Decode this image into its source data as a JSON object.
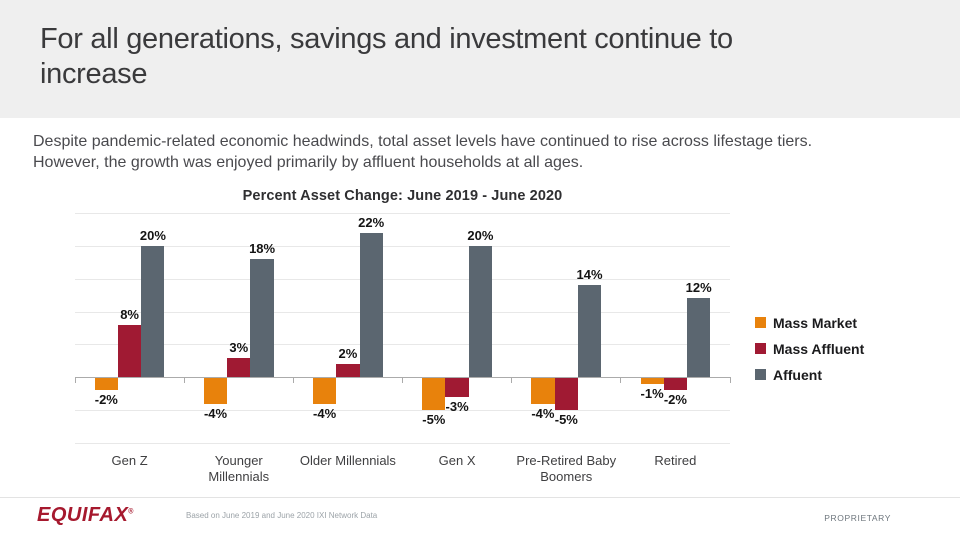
{
  "slide": {
    "header": {
      "title": "For all generations, savings and investment continue to increase",
      "bg_color": "#EFEFEF"
    },
    "subtitle": {
      "line1": "Despite pandemic-related economic headwinds, total asset levels have continued to rise across lifestage tiers.",
      "line2": "However, the growth was enjoyed primarily by affluent households at all ages."
    },
    "footer": {
      "logo_text": "EQUIFAX",
      "logo_registered_mark": "®",
      "logo_color": "#A6192E",
      "footnote": "Based on June 2019 and June 2020 IXI Network Data",
      "proprietary_label": "PROPRIETARY"
    }
  },
  "chart_data": {
    "type": "bar",
    "title": "Percent Asset Change: June 2019 - June 2020",
    "categories": [
      "Gen Z",
      "Younger Millennials",
      "Older Millennials",
      "Gen X",
      "Pre-Retired Baby Boomers",
      "Retired"
    ],
    "series": [
      {
        "name": "Mass Market",
        "color": "#E8820C",
        "values": [
          -2,
          -4,
          -4,
          -5,
          -4,
          -1
        ]
      },
      {
        "name": "Mass Affluent",
        "color": "#A01A33",
        "values": [
          8,
          3,
          2,
          -3,
          -5,
          -2
        ]
      },
      {
        "name": "Affuent",
        "color": "#5B6670",
        "values": [
          20,
          18,
          22,
          20,
          14,
          12
        ]
      }
    ],
    "value_suffix": "%",
    "ylim": [
      -10,
      25
    ],
    "grid_step": 5,
    "grid": true,
    "legend_position": "right",
    "data_labels": true,
    "xlabel": "",
    "ylabel": ""
  }
}
